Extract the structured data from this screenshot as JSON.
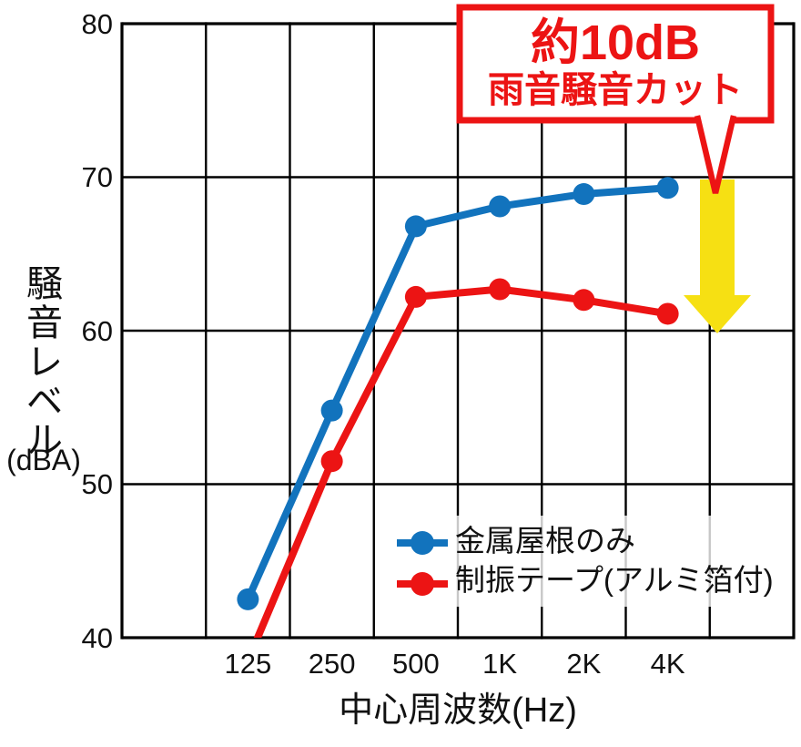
{
  "chart_data": {
    "type": "line",
    "title": "",
    "xlabel": "中心周波数(Hz)",
    "ylabel": "騒音レベル",
    "ylabel_unit": "(dBA)",
    "categories": [
      "125",
      "250",
      "500",
      "1K",
      "2K",
      "4K"
    ],
    "yticks": [
      80,
      70,
      60,
      50,
      40
    ],
    "ylim": [
      40,
      80
    ],
    "grid": true,
    "grid_color": "#000000",
    "legend_position": "inside-bottom-right",
    "series": [
      {
        "name": "金属屋根のみ",
        "color": "#1273bd",
        "values": [
          42.5,
          54.8,
          66.8,
          68.1,
          68.9,
          69.3
        ]
      },
      {
        "name": "制振テープ(アルミ箔付)",
        "color": "#ec1414",
        "values": [
          38.5,
          51.5,
          62.2,
          62.7,
          62.0,
          61.1
        ],
        "note": "125Hz point lies below the 40 dBA axis and is clipped off-chart"
      }
    ],
    "annotation": {
      "line1": "約10dB",
      "line2": "雨音騒音カット",
      "color": "#ec1414",
      "arrow_icon": "down-arrow",
      "arrow_color": "#f6e013",
      "arrow_span_dba": [
        70,
        60
      ]
    }
  }
}
